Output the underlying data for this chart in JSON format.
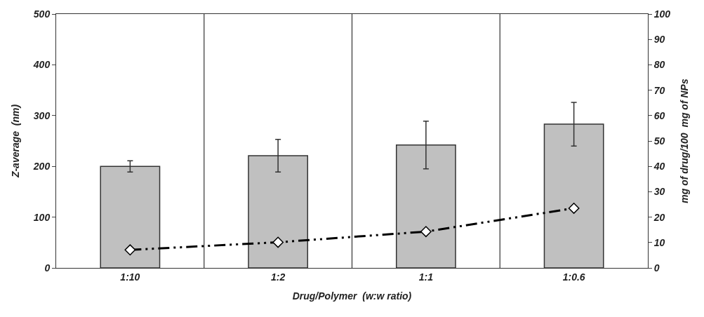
{
  "chart_data": {
    "type": "bar",
    "xlabel": "Drug/Polymer  (w:w ratio)",
    "ylabel": "Z-average  (nm)",
    "y2label": "mg of drug/100  mg of NPs",
    "categories": [
      "1:10",
      "1:2",
      "1:1",
      "1:0.6"
    ],
    "series": [
      {
        "color": "#c0c0c0",
        "values": [
          200,
          221,
          242,
          283
        ],
        "errors": [
          11,
          32,
          47,
          43
        ]
      },
      {
        "type": "line",
        "axis": "y2",
        "color": "#000000",
        "values": [
          7.1,
          10.1,
          14.3,
          23.5
        ],
        "marker": "diamond",
        "line_style": "dashed"
      }
    ],
    "ylim": [
      0,
      500
    ],
    "yticks": [
      0,
      100,
      200,
      300,
      400,
      500
    ],
    "y2lim": [
      0,
      100
    ],
    "y2ticks": [
      0,
      10,
      20,
      30,
      40,
      50,
      60,
      70,
      80,
      90,
      100
    ],
    "grid": "x"
  }
}
